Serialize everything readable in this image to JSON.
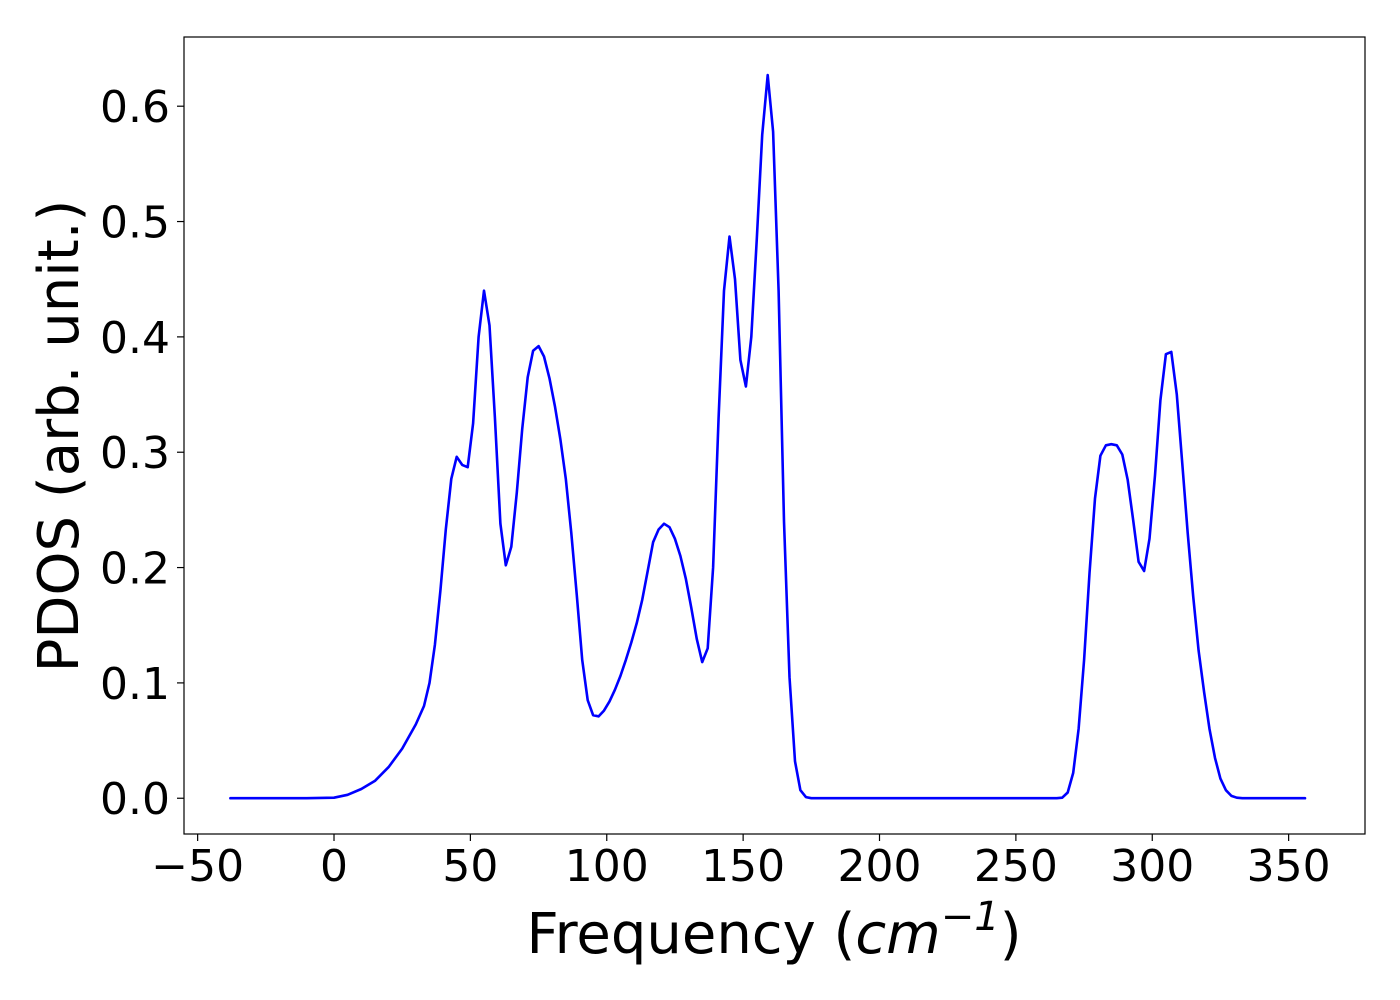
{
  "chart_data": {
    "type": "line",
    "title": "",
    "xlabel": {
      "prefix": "Frequency (",
      "math_base": "cm",
      "math_exp": "−1",
      "suffix": ")"
    },
    "ylabel": "PDOS (arb. unit.)",
    "xlim": [
      -55,
      378
    ],
    "ylim": [
      -0.031,
      0.66
    ],
    "xticks": [
      -50,
      0,
      50,
      100,
      150,
      200,
      250,
      300,
      350
    ],
    "xtick_labels": [
      "−50",
      "0",
      "50",
      "100",
      "150",
      "200",
      "250",
      "300",
      "350"
    ],
    "yticks": [
      0.0,
      0.1,
      0.2,
      0.3,
      0.4,
      0.5,
      0.6
    ],
    "ytick_labels": [
      "0.0",
      "0.1",
      "0.2",
      "0.3",
      "0.4",
      "0.5",
      "0.6"
    ],
    "grid": false,
    "legend": "none",
    "series": [
      {
        "color": "#0000ff",
        "x": [
          -38,
          -20,
          -10,
          0,
          5,
          10,
          15,
          20,
          25,
          30,
          33,
          35,
          37,
          39,
          41,
          43,
          45,
          47,
          49,
          51,
          53,
          55,
          57,
          59,
          61,
          63,
          65,
          67,
          69,
          71,
          73,
          75,
          77,
          79,
          81,
          83,
          85,
          87,
          89,
          91,
          93,
          95,
          97,
          99,
          101,
          103,
          105,
          107,
          109,
          111,
          113,
          115,
          117,
          119,
          121,
          123,
          125,
          127,
          129,
          131,
          133,
          135,
          137,
          139,
          141,
          143,
          145,
          147,
          149,
          151,
          153,
          155,
          157,
          159,
          161,
          163,
          165,
          167,
          169,
          171,
          173,
          175,
          177,
          200,
          250,
          265,
          267,
          269,
          271,
          273,
          275,
          277,
          279,
          281,
          283,
          285,
          287,
          289,
          291,
          293,
          295,
          297,
          299,
          301,
          303,
          305,
          307,
          309,
          311,
          313,
          315,
          317,
          319,
          321,
          323,
          325,
          327,
          329,
          331,
          333,
          335,
          340,
          356
        ],
        "y": [
          0.0,
          0.0,
          0.0,
          0.0005,
          0.003,
          0.008,
          0.015,
          0.027,
          0.043,
          0.064,
          0.08,
          0.1,
          0.133,
          0.18,
          0.233,
          0.277,
          0.296,
          0.289,
          0.287,
          0.325,
          0.4,
          0.44,
          0.41,
          0.33,
          0.238,
          0.202,
          0.218,
          0.265,
          0.32,
          0.365,
          0.388,
          0.392,
          0.383,
          0.364,
          0.34,
          0.311,
          0.277,
          0.23,
          0.176,
          0.12,
          0.085,
          0.072,
          0.071,
          0.076,
          0.084,
          0.094,
          0.106,
          0.12,
          0.135,
          0.152,
          0.172,
          0.197,
          0.222,
          0.233,
          0.238,
          0.235,
          0.225,
          0.21,
          0.19,
          0.165,
          0.138,
          0.118,
          0.13,
          0.2,
          0.33,
          0.44,
          0.487,
          0.45,
          0.38,
          0.357,
          0.4,
          0.485,
          0.575,
          0.627,
          0.578,
          0.44,
          0.24,
          0.105,
          0.032,
          0.007,
          0.001,
          0.0,
          0.0,
          0.0,
          0.0,
          0.0,
          0.0005,
          0.005,
          0.022,
          0.06,
          0.12,
          0.195,
          0.26,
          0.297,
          0.306,
          0.307,
          0.306,
          0.298,
          0.276,
          0.241,
          0.205,
          0.197,
          0.225,
          0.28,
          0.345,
          0.385,
          0.387,
          0.35,
          0.29,
          0.23,
          0.175,
          0.128,
          0.092,
          0.06,
          0.035,
          0.017,
          0.007,
          0.002,
          0.0005,
          0.0,
          0.0,
          0.0,
          0.0
        ]
      }
    ]
  }
}
